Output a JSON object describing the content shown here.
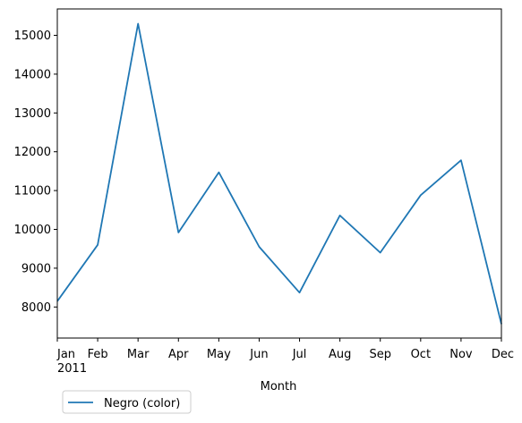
{
  "chart_data": {
    "type": "line",
    "title": "",
    "xlabel": "Month",
    "ylabel": "",
    "categories": [
      "Jan",
      "Feb",
      "Mar",
      "Apr",
      "May",
      "Jun",
      "Jul",
      "Aug",
      "Sep",
      "Oct",
      "Nov",
      "Dec"
    ],
    "x_sublabel": "2011",
    "y_ticks": [
      8000,
      9000,
      10000,
      11000,
      12000,
      13000,
      14000,
      15000
    ],
    "ylim": [
      7200,
      15680
    ],
    "grid": false,
    "legend_position": "below-left",
    "series": [
      {
        "name": "Negro (color)",
        "color": "#1f77b4",
        "values": [
          8150,
          9600,
          15300,
          9920,
          11470,
          9550,
          8370,
          10360,
          9400,
          10880,
          11780,
          7560
        ]
      }
    ]
  }
}
